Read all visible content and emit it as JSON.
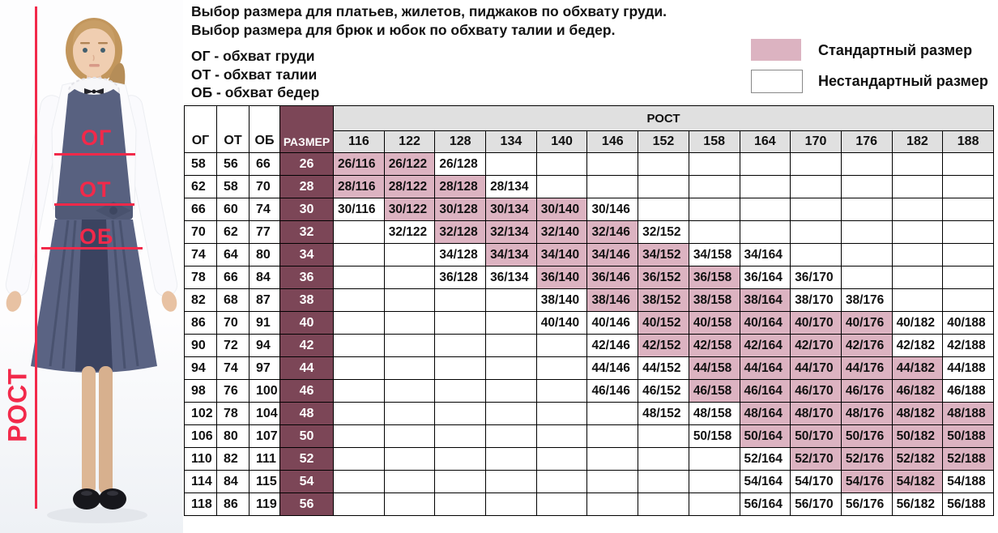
{
  "header": {
    "title_line1": "Выбор размера для платьев, жилетов, пиджаков по обхвату груди.",
    "title_line2": "Выбор размера для брюк и юбок по обхвату талии и бедер.",
    "abbreviations": [
      "ОГ - обхват груди",
      "ОТ - обхват талии",
      "ОБ - обхват бедер"
    ]
  },
  "legend": {
    "standard_label": "Стандартный размер",
    "nonstandard_label": "Нестандартный размер",
    "standard_color": "#dcb3c1",
    "nonstandard_color": "#ffffff"
  },
  "photo": {
    "chest_label": "ОГ",
    "waist_label": "ОТ",
    "hips_label": "ОБ",
    "height_label": "РОСТ",
    "annotation_color": "#f2294a"
  },
  "table": {
    "col_og": "ОГ",
    "col_ot": "ОТ",
    "col_ob": "ОБ",
    "col_size": "РАЗМЕР",
    "col_rost": "РОСТ",
    "size_column_color": "#7c4657",
    "header_gray": "#e0e0e0",
    "heights": [
      "116",
      "122",
      "128",
      "134",
      "140",
      "146",
      "152",
      "158",
      "164",
      "170",
      "176",
      "182",
      "188"
    ],
    "rows": [
      {
        "og": "58",
        "ot": "56",
        "ob": "66",
        "size": "26",
        "cells": [
          {
            "rost": "116",
            "label": "26/116",
            "standard": true
          },
          {
            "rost": "122",
            "label": "26/122",
            "standard": true
          },
          {
            "rost": "128",
            "label": "26/128",
            "standard": false
          }
        ]
      },
      {
        "og": "62",
        "ot": "58",
        "ob": "70",
        "size": "28",
        "cells": [
          {
            "rost": "116",
            "label": "28/116",
            "standard": true
          },
          {
            "rost": "122",
            "label": "28/122",
            "standard": true
          },
          {
            "rost": "128",
            "label": "28/128",
            "standard": true
          },
          {
            "rost": "134",
            "label": "28/134",
            "standard": false
          }
        ]
      },
      {
        "og": "66",
        "ot": "60",
        "ob": "74",
        "size": "30",
        "cells": [
          {
            "rost": "116",
            "label": "30/116",
            "standard": false
          },
          {
            "rost": "122",
            "label": "30/122",
            "standard": true
          },
          {
            "rost": "128",
            "label": "30/128",
            "standard": true
          },
          {
            "rost": "134",
            "label": "30/134",
            "standard": true
          },
          {
            "rost": "140",
            "label": "30/140",
            "standard": true
          },
          {
            "rost": "146",
            "label": "30/146",
            "standard": false
          }
        ]
      },
      {
        "og": "70",
        "ot": "62",
        "ob": "77",
        "size": "32",
        "cells": [
          {
            "rost": "122",
            "label": "32/122",
            "standard": false
          },
          {
            "rost": "128",
            "label": "32/128",
            "standard": true
          },
          {
            "rost": "134",
            "label": "32/134",
            "standard": true
          },
          {
            "rost": "140",
            "label": "32/140",
            "standard": true
          },
          {
            "rost": "146",
            "label": "32/146",
            "standard": true
          },
          {
            "rost": "152",
            "label": "32/152",
            "standard": false
          }
        ]
      },
      {
        "og": "74",
        "ot": "64",
        "ob": "80",
        "size": "34",
        "cells": [
          {
            "rost": "128",
            "label": "34/128",
            "standard": false
          },
          {
            "rost": "134",
            "label": "34/134",
            "standard": true
          },
          {
            "rost": "140",
            "label": "34/140",
            "standard": true
          },
          {
            "rost": "146",
            "label": "34/146",
            "standard": true
          },
          {
            "rost": "152",
            "label": "34/152",
            "standard": true
          },
          {
            "rost": "158",
            "label": "34/158",
            "standard": false
          },
          {
            "rost": "164",
            "label": "34/164",
            "standard": false
          }
        ]
      },
      {
        "og": "78",
        "ot": "66",
        "ob": "84",
        "size": "36",
        "cells": [
          {
            "rost": "128",
            "label": "36/128",
            "standard": false
          },
          {
            "rost": "134",
            "label": "36/134",
            "standard": false
          },
          {
            "rost": "140",
            "label": "36/140",
            "standard": true
          },
          {
            "rost": "146",
            "label": "36/146",
            "standard": true
          },
          {
            "rost": "152",
            "label": "36/152",
            "standard": true
          },
          {
            "rost": "158",
            "label": "36/158",
            "standard": true
          },
          {
            "rost": "164",
            "label": "36/164",
            "standard": false
          },
          {
            "rost": "170",
            "label": "36/170",
            "standard": false
          }
        ]
      },
      {
        "og": "82",
        "ot": "68",
        "ob": "87",
        "size": "38",
        "cells": [
          {
            "rost": "140",
            "label": "38/140",
            "standard": false
          },
          {
            "rost": "146",
            "label": "38/146",
            "standard": true
          },
          {
            "rost": "152",
            "label": "38/152",
            "standard": true
          },
          {
            "rost": "158",
            "label": "38/158",
            "standard": true
          },
          {
            "rost": "164",
            "label": "38/164",
            "standard": true
          },
          {
            "rost": "170",
            "label": "38/170",
            "standard": false
          },
          {
            "rost": "176",
            "label": "38/176",
            "standard": false
          }
        ]
      },
      {
        "og": "86",
        "ot": "70",
        "ob": "91",
        "size": "40",
        "cells": [
          {
            "rost": "140",
            "label": "40/140",
            "standard": false
          },
          {
            "rost": "146",
            "label": "40/146",
            "standard": false
          },
          {
            "rost": "152",
            "label": "40/152",
            "standard": true
          },
          {
            "rost": "158",
            "label": "40/158",
            "standard": true
          },
          {
            "rost": "164",
            "label": "40/164",
            "standard": true
          },
          {
            "rost": "170",
            "label": "40/170",
            "standard": true
          },
          {
            "rost": "176",
            "label": "40/176",
            "standard": true
          },
          {
            "rost": "182",
            "label": "40/182",
            "standard": false
          },
          {
            "rost": "188",
            "label": "40/188",
            "standard": false
          }
        ]
      },
      {
        "og": "90",
        "ot": "72",
        "ob": "94",
        "size": "42",
        "cells": [
          {
            "rost": "146",
            "label": "42/146",
            "standard": false
          },
          {
            "rost": "152",
            "label": "42/152",
            "standard": true
          },
          {
            "rost": "158",
            "label": "42/158",
            "standard": true
          },
          {
            "rost": "164",
            "label": "42/164",
            "standard": true
          },
          {
            "rost": "170",
            "label": "42/170",
            "standard": true
          },
          {
            "rost": "176",
            "label": "42/176",
            "standard": true
          },
          {
            "rost": "182",
            "label": "42/182",
            "standard": false
          },
          {
            "rost": "188",
            "label": "42/188",
            "standard": false
          }
        ]
      },
      {
        "og": "94",
        "ot": "74",
        "ob": "97",
        "size": "44",
        "cells": [
          {
            "rost": "146",
            "label": "44/146",
            "standard": false
          },
          {
            "rost": "152",
            "label": "44/152",
            "standard": false
          },
          {
            "rost": "158",
            "label": "44/158",
            "standard": true
          },
          {
            "rost": "164",
            "label": "44/164",
            "standard": true
          },
          {
            "rost": "170",
            "label": "44/170",
            "standard": true
          },
          {
            "rost": "176",
            "label": "44/176",
            "standard": true
          },
          {
            "rost": "182",
            "label": "44/182",
            "standard": true
          },
          {
            "rost": "188",
            "label": "44/188",
            "standard": false
          }
        ]
      },
      {
        "og": "98",
        "ot": "76",
        "ob": "100",
        "size": "46",
        "cells": [
          {
            "rost": "146",
            "label": "46/146",
            "standard": false
          },
          {
            "rost": "152",
            "label": "46/152",
            "standard": false
          },
          {
            "rost": "158",
            "label": "46/158",
            "standard": true
          },
          {
            "rost": "164",
            "label": "46/164",
            "standard": true
          },
          {
            "rost": "170",
            "label": "46/170",
            "standard": true
          },
          {
            "rost": "176",
            "label": "46/176",
            "standard": true
          },
          {
            "rost": "182",
            "label": "46/182",
            "standard": true
          },
          {
            "rost": "188",
            "label": "46/188",
            "standard": false
          }
        ]
      },
      {
        "og": "102",
        "ot": "78",
        "ob": "104",
        "size": "48",
        "cells": [
          {
            "rost": "152",
            "label": "48/152",
            "standard": false
          },
          {
            "rost": "158",
            "label": "48/158",
            "standard": false
          },
          {
            "rost": "164",
            "label": "48/164",
            "standard": true
          },
          {
            "rost": "170",
            "label": "48/170",
            "standard": true
          },
          {
            "rost": "176",
            "label": "48/176",
            "standard": true
          },
          {
            "rost": "182",
            "label": "48/182",
            "standard": true
          },
          {
            "rost": "188",
            "label": "48/188",
            "standard": true
          }
        ]
      },
      {
        "og": "106",
        "ot": "80",
        "ob": "107",
        "size": "50",
        "cells": [
          {
            "rost": "158",
            "label": "50/158",
            "standard": false
          },
          {
            "rost": "164",
            "label": "50/164",
            "standard": true
          },
          {
            "rost": "170",
            "label": "50/170",
            "standard": true
          },
          {
            "rost": "176",
            "label": "50/176",
            "standard": true
          },
          {
            "rost": "182",
            "label": "50/182",
            "standard": true
          },
          {
            "rost": "188",
            "label": "50/188",
            "standard": true
          }
        ]
      },
      {
        "og": "110",
        "ot": "82",
        "ob": "111",
        "size": "52",
        "cells": [
          {
            "rost": "164",
            "label": "52/164",
            "standard": false
          },
          {
            "rost": "170",
            "label": "52/170",
            "standard": true
          },
          {
            "rost": "176",
            "label": "52/176",
            "standard": true
          },
          {
            "rost": "182",
            "label": "52/182",
            "standard": true
          },
          {
            "rost": "188",
            "label": "52/188",
            "standard": true
          }
        ]
      },
      {
        "og": "114",
        "ot": "84",
        "ob": "115",
        "size": "54",
        "cells": [
          {
            "rost": "164",
            "label": "54/164",
            "standard": false
          },
          {
            "rost": "170",
            "label": "54/170",
            "standard": false
          },
          {
            "rost": "176",
            "label": "54/176",
            "standard": true
          },
          {
            "rost": "182",
            "label": "54/182",
            "standard": true
          },
          {
            "rost": "188",
            "label": "54/188",
            "standard": false
          }
        ]
      },
      {
        "og": "118",
        "ot": "86",
        "ob": "119",
        "size": "56",
        "cells": [
          {
            "rost": "164",
            "label": "56/164",
            "standard": false
          },
          {
            "rost": "170",
            "label": "56/170",
            "standard": false
          },
          {
            "rost": "176",
            "label": "56/176",
            "standard": false
          },
          {
            "rost": "182",
            "label": "56/182",
            "standard": false
          },
          {
            "rost": "188",
            "label": "56/188",
            "standard": false
          }
        ]
      }
    ]
  }
}
